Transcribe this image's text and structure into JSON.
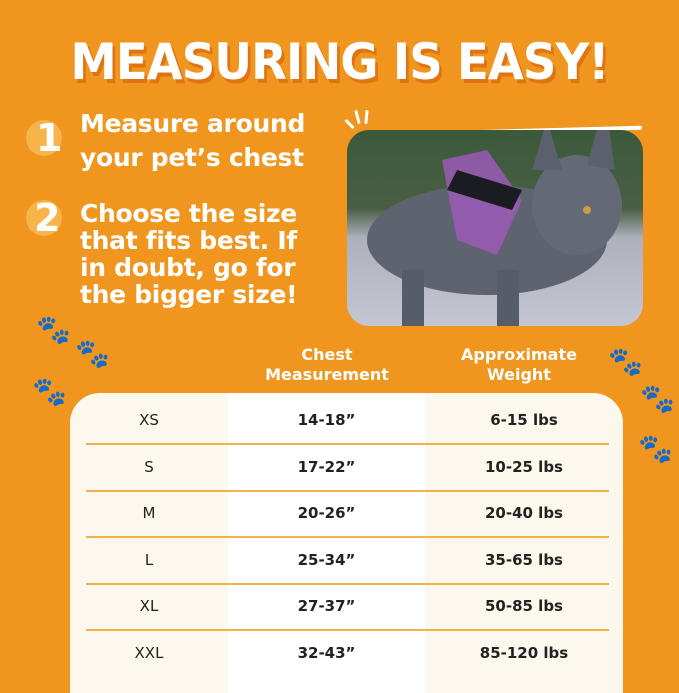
{
  "title": "MEASURING IS EASY!",
  "steps": [
    {
      "number": "1",
      "lines": [
        "Measure around",
        "your pet’s chest"
      ]
    },
    {
      "number": "2",
      "lines": [
        "Choose the size",
        "that fits best. If",
        "in doubt, go for",
        "the bigger size!"
      ]
    }
  ],
  "photo": {
    "subject": "French bulldog wearing a purple harness"
  },
  "table": {
    "headers": {
      "chest": [
        "Chest",
        "Measurement"
      ],
      "weight": [
        "Approximate",
        "Weight"
      ]
    },
    "rows": [
      {
        "size": "XS",
        "chest": "14-18”",
        "weight": "6-15 lbs"
      },
      {
        "size": "S",
        "chest": "17-22”",
        "weight": "10-25 lbs"
      },
      {
        "size": "M",
        "chest": "20-26”",
        "weight": "20-40 lbs"
      },
      {
        "size": "L",
        "chest": "25-34”",
        "weight": "35-65 lbs"
      },
      {
        "size": "XL",
        "chest": "27-37”",
        "weight": "50-85 lbs"
      },
      {
        "size": "XXL",
        "chest": "32-43”",
        "weight": "85-120 lbs"
      }
    ]
  },
  "colors": {
    "background": "#f0961f",
    "divider": "#f0b347",
    "paw": "#e07a1a"
  },
  "icons": [
    "paw-icon"
  ]
}
